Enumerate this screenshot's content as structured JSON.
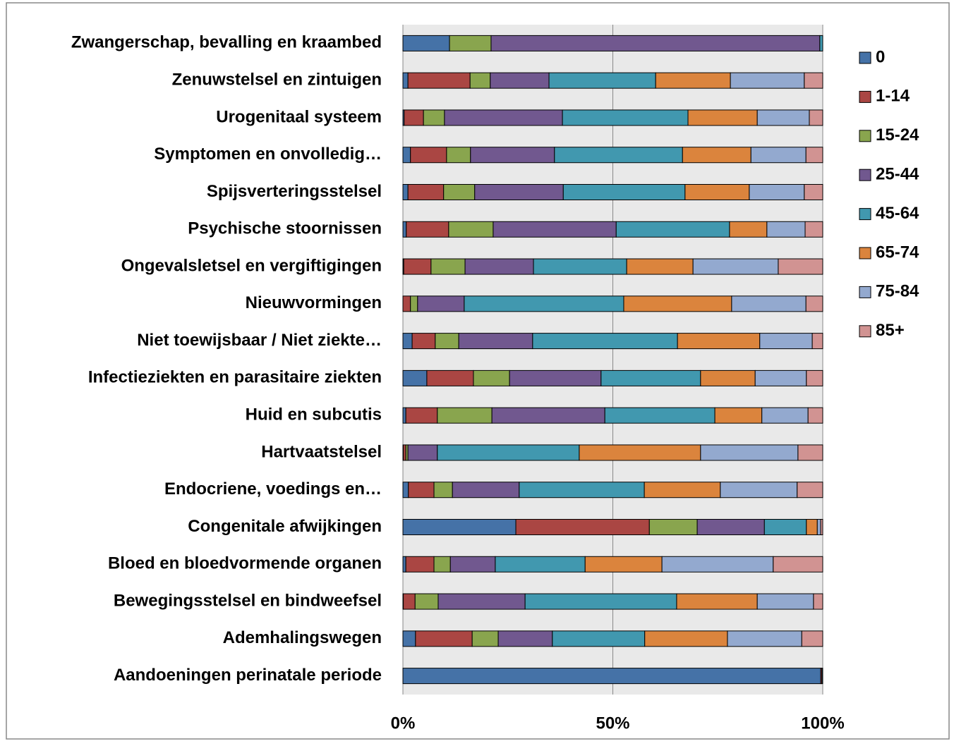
{
  "chart_data": {
    "type": "stacked-bar-horizontal",
    "categories": [
      "Zwangerschap, bevalling en kraambed",
      "Zenuwstelsel en zintuigen",
      "Urogenitaal systeem",
      "Symptomen en onvolledig…",
      "Spijsverteringsstelsel",
      "Psychische stoornissen",
      "Ongevalsletsel en vergiftigingen",
      "Nieuwvormingen",
      "Niet toewijsbaar / Niet ziekte…",
      "Infectieziekten en parasitaire ziekten",
      "Huid en subcutis",
      "Hartvaatstelsel",
      "Endocriene, voedings en…",
      "Congenitale afwijkingen",
      "Bloed en bloedvormende organen",
      "Bewegingsstelsel en bindweefsel",
      "Ademhalingswegen",
      "Aandoeningen perinatale periode"
    ],
    "series": [
      {
        "name": "0",
        "color": "#4572a7",
        "values": [
          11.1,
          1.2,
          0.3,
          1.8,
          1.2,
          0.8,
          0.2,
          0,
          2.2,
          5.7,
          0.7,
          0.1,
          1.3,
          26.9,
          0.7,
          0.1,
          3.0,
          99.5
        ]
      },
      {
        "name": "1-14",
        "color": "#aa4643",
        "values": [
          0,
          14.8,
          4.6,
          8.6,
          8.5,
          10.1,
          6.5,
          1.8,
          5.5,
          11.1,
          7.5,
          0.6,
          6.1,
          31.8,
          6.7,
          2.8,
          13.5,
          0.3
        ]
      },
      {
        "name": "15-24",
        "color": "#89a54e",
        "values": [
          9.9,
          4.8,
          5.0,
          5.7,
          7.4,
          10.6,
          8.1,
          1.7,
          5.6,
          8.6,
          13.0,
          0.5,
          4.4,
          11.4,
          3.9,
          5.5,
          6.2,
          0
        ]
      },
      {
        "name": "25-44",
        "color": "#71588f",
        "values": [
          78.3,
          14.0,
          28.1,
          20.0,
          21.1,
          29.3,
          16.3,
          11.1,
          17.6,
          21.8,
          26.9,
          7.0,
          15.9,
          16.0,
          10.7,
          20.7,
          12.9,
          0
        ]
      },
      {
        "name": "45-64",
        "color": "#4198af",
        "values": [
          0.7,
          25.4,
          29.9,
          30.5,
          29.0,
          27.0,
          22.2,
          38.0,
          34.5,
          23.7,
          26.2,
          33.8,
          29.8,
          10.0,
          21.4,
          36.1,
          22.0,
          0.2
        ]
      },
      {
        "name": "65-74",
        "color": "#db843d",
        "values": [
          0,
          17.8,
          16.5,
          16.3,
          15.3,
          8.9,
          15.8,
          25.7,
          19.6,
          13.0,
          11.2,
          28.9,
          18.1,
          2.6,
          18.3,
          19.2,
          19.7,
          0
        ]
      },
      {
        "name": "75-84",
        "color": "#93a9cf",
        "values": [
          0,
          17.6,
          12.4,
          13.1,
          13.1,
          9.1,
          20.3,
          17.7,
          12.5,
          12.2,
          11.0,
          23.2,
          18.3,
          0.8,
          26.5,
          13.4,
          17.7,
          0
        ]
      },
      {
        "name": "85+",
        "color": "#d19392",
        "values": [
          0,
          4.4,
          3.2,
          4.0,
          4.4,
          4.2,
          10.6,
          4.0,
          2.5,
          3.9,
          3.5,
          5.9,
          6.1,
          0.5,
          11.8,
          2.2,
          5.0,
          0
        ]
      }
    ],
    "xlim": [
      0,
      100
    ],
    "xticks": [
      {
        "value": 0,
        "label": "0%"
      },
      {
        "value": 50,
        "label": "50%"
      },
      {
        "value": 100,
        "label": "100%"
      }
    ],
    "grid": true,
    "legend": "right"
  }
}
